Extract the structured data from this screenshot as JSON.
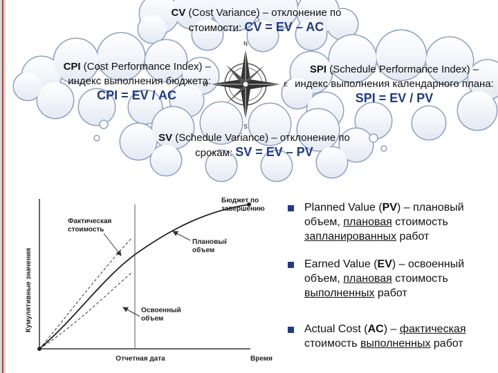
{
  "clouds": [
    {
      "abbr": "CV",
      "text": " (Cost Variance) – отклонение по стоимости: ",
      "formula": "CV = EV – AC"
    },
    {
      "abbr": "CPI",
      "text": " (Cost Performance Index) – индекс выполнения бюджета: ",
      "formula": "CPI = EV / AC"
    },
    {
      "abbr": "SPI",
      "text": " (Schedule Performance Index) – индекс выполнения календарного плана: ",
      "formula": "SPI = EV / PV"
    },
    {
      "abbr": "SV",
      "text": " (Schedule Variance) – отклонение по срокам: ",
      "formula": "SV = EV – PV"
    }
  ],
  "compass": {
    "north": "N",
    "east": "E",
    "south": "S",
    "west": "W"
  },
  "diagram": {
    "budget": "Бюджет по завершению",
    "actual": "Фактическая стоимость",
    "planned": "Плановый объем",
    "earned": "Освоенный объем",
    "y_axis": "Кумулятивные значения",
    "report_date": "Отчетная дата",
    "x_axis": "Время"
  },
  "bullets": [
    {
      "segments": [
        {
          "text": "Planned Value ("
        },
        {
          "text": "PV",
          "style": "bold"
        },
        {
          "text": ") – плановый объем, "
        },
        {
          "text": "плановая",
          "style": "underline"
        },
        {
          "text": " стоимость "
        },
        {
          "text": "запланированных",
          "style": "underline"
        },
        {
          "text": " работ"
        }
      ]
    },
    {
      "segments": [
        {
          "text": "Earned Value ("
        },
        {
          "text": "EV",
          "style": "bold"
        },
        {
          "text": ") – освоенный объем, "
        },
        {
          "text": "плановая",
          "style": "underline"
        },
        {
          "text": " стоимость "
        },
        {
          "text": "выполненных",
          "style": "underline"
        },
        {
          "text": " работ"
        }
      ]
    },
    {
      "segments": [
        {
          "text": "Actual Cost ("
        },
        {
          "text": "AC",
          "style": "bold"
        },
        {
          "text": ") – "
        },
        {
          "text": "фактическая",
          "style": "underline"
        },
        {
          "text": " стоимость "
        },
        {
          "text": "выполненных",
          "style": "underline"
        },
        {
          "text": " работ"
        }
      ]
    }
  ]
}
